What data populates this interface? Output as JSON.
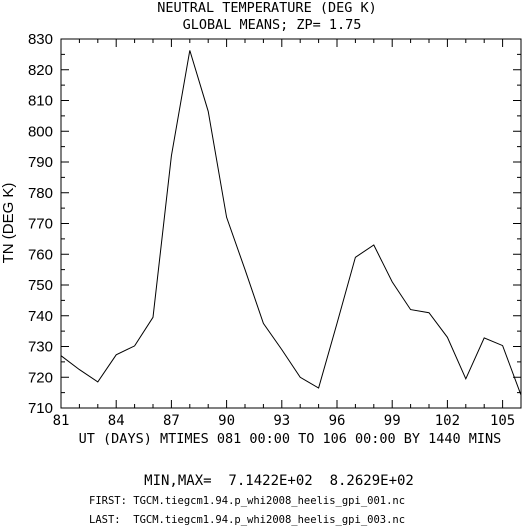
{
  "chart_data": {
    "type": "line",
    "title": "NEUTRAL TEMPERATURE (DEG K)",
    "subtitle": "GLOBAL MEANS; ZP=  1.75",
    "xlabel": "UT (DAYS) MTIMES 081 00:00 TO 106 00:00 BY 1440 MINS",
    "ylabel": "TN (DEG K)",
    "xlim": [
      81,
      106
    ],
    "ylim": [
      710,
      830
    ],
    "xticks": [
      "81",
      "84",
      "87",
      "90",
      "93",
      "96",
      "99",
      "102",
      "105"
    ],
    "yticks": [
      "710",
      "720",
      "730",
      "740",
      "750",
      "760",
      "770",
      "780",
      "790",
      "800",
      "810",
      "820",
      "830"
    ],
    "grid": false,
    "series": [
      {
        "x": [
          81,
          82,
          83,
          84,
          85,
          86,
          87,
          88,
          89,
          90,
          91,
          92,
          93,
          94,
          95,
          96,
          97,
          98,
          99,
          100,
          101,
          102,
          103,
          104,
          105,
          106
        ],
        "values": [
          727,
          722.5,
          718.5,
          727.3,
          730.2,
          739.5,
          792,
          826.3,
          806.5,
          772,
          755,
          737.5,
          729,
          720,
          716.5,
          737.5,
          759,
          763,
          751,
          742,
          741,
          733,
          719.5,
          732.8,
          730.3,
          714.2
        ]
      }
    ]
  },
  "footer": {
    "minmax": "MIN,MAX=  7.1422E+02  8.2629E+02",
    "first": "FIRST: TGCM.tiegcm1.94.p_whi2008_heelis_gpi_001.nc",
    "last": "LAST:  TGCM.tiegcm1.94.p_whi2008_heelis_gpi_003.nc"
  },
  "colors": {
    "line": "#000000",
    "axes": "#000000",
    "background": "#ffffff"
  }
}
